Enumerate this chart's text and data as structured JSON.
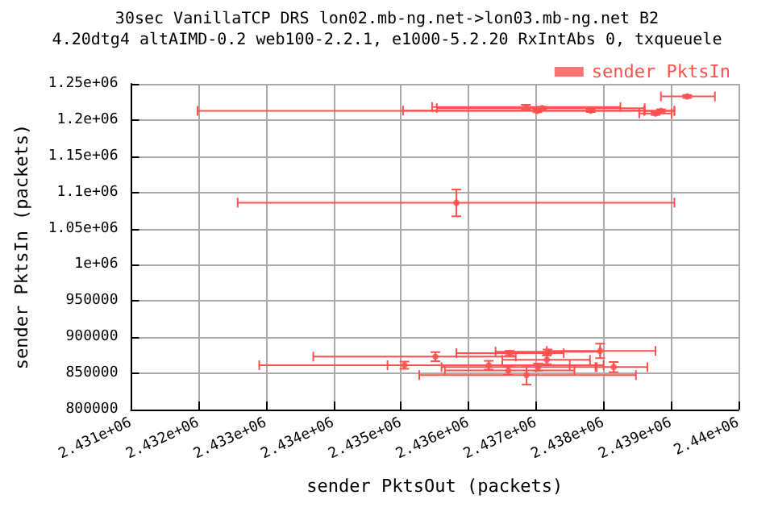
{
  "chart_data": {
    "type": "scatter",
    "title": "30sec VanillaTCP DRS lon02.mb-ng.net->lon03.mb-ng.net B2",
    "subtitle": "4.20dtg4 altAIMD-0.2 web100-2.2.1, e1000-5.2.20 RxIntAbs 0, txqueuele",
    "xlabel": "sender PktsOut (packets)",
    "ylabel": "sender PktsIn (packets)",
    "series": [
      {
        "name": "sender PktsIn",
        "color": "#ff5050",
        "x": [
          2436850,
          2437020,
          2437810,
          2437090,
          2438770,
          2438850,
          2435820,
          2439240,
          2435510,
          2436610,
          2437170,
          2437950,
          2435050,
          2436300,
          2437030,
          2437160,
          2438150,
          2436590,
          2436860
        ],
        "values": [
          1218000,
          1212700,
          1213000,
          1216400,
          1209000,
          1212700,
          1085800,
          1232600,
          873100,
          878100,
          880000,
          881100,
          861300,
          861300,
          858700,
          868700,
          858700,
          853900,
          847600
        ],
        "xerrors": [
          [
            2435460,
            2438250
          ],
          [
            2431985,
            2439050
          ],
          [
            2435030,
            2438610
          ],
          [
            2435530,
            2438610
          ],
          [
            2438530,
            2439010
          ],
          [
            2438600,
            2439050
          ],
          [
            2432580,
            2439050
          ],
          [
            2438850,
            2439650
          ],
          [
            2433700,
            2436700
          ],
          [
            2435820,
            2437410
          ],
          [
            2436400,
            2437950
          ],
          [
            2437160,
            2438770
          ],
          [
            2432900,
            2438000
          ],
          [
            2434800,
            2437500
          ],
          [
            2435600,
            2437900
          ],
          [
            2436500,
            2437800
          ],
          [
            2437880,
            2438650
          ],
          [
            2435650,
            2437570
          ],
          [
            2435270,
            2438480
          ]
        ],
        "errors": [
          [
            1215000,
            1221000
          ],
          [
            1210700,
            1214700
          ],
          [
            1211000,
            1215000
          ],
          [
            1214400,
            1218400
          ],
          [
            1207000,
            1211000
          ],
          [
            1210700,
            1214700
          ],
          [
            1067000,
            1104000
          ],
          [
            1230600,
            1234600
          ],
          [
            866800,
            879400
          ],
          [
            875100,
            881100
          ],
          [
            877000,
            883000
          ],
          [
            871100,
            891100
          ],
          [
            856300,
            866300
          ],
          [
            855300,
            867300
          ],
          [
            853700,
            863700
          ],
          [
            862700,
            874700
          ],
          [
            851700,
            865700
          ],
          [
            847900,
            859900
          ],
          [
            834600,
            860600
          ]
        ]
      }
    ],
    "xlim": [
      2431000,
      2440000
    ],
    "xticks": [
      {
        "value": 2431000,
        "label": "2.431e+06"
      },
      {
        "value": 2432000,
        "label": "2.432e+06"
      },
      {
        "value": 2433000,
        "label": "2.433e+06"
      },
      {
        "value": 2434000,
        "label": "2.434e+06"
      },
      {
        "value": 2435000,
        "label": "2.435e+06"
      },
      {
        "value": 2436000,
        "label": "2.436e+06"
      },
      {
        "value": 2437000,
        "label": "2.437e+06"
      },
      {
        "value": 2438000,
        "label": "2.438e+06"
      },
      {
        "value": 2439000,
        "label": "2.439e+06"
      },
      {
        "value": 2440000,
        "label": "2.44e+06"
      }
    ],
    "ylim": [
      800000,
      1250000
    ],
    "yticks": [
      800000,
      850000,
      900000,
      950000,
      {
        "value": 1000000,
        "label": "1e+06"
      },
      {
        "value": 1050000,
        "label": "1.05e+06"
      },
      {
        "value": 1100000,
        "label": "1.1e+06"
      },
      {
        "value": 1150000,
        "label": "1.15e+06"
      },
      {
        "value": 1200000,
        "label": "1.2e+06"
      },
      {
        "value": 1250000,
        "label": "1.25e+06"
      }
    ],
    "grid": true,
    "legend": "top right",
    "marker": "circle"
  }
}
